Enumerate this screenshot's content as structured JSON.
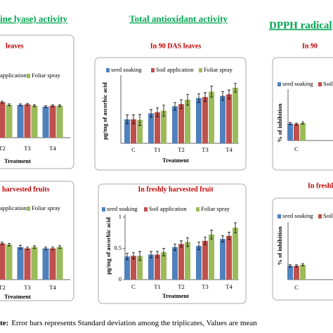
{
  "headings": [
    "ine lyase) activity",
    "Total antioxidant activity",
    "DPPH radical"
  ],
  "note": {
    "label": "te:",
    "text": "Error bars represents Standard deviation among the triplicates, Values are mean"
  },
  "chart_data": [
    {
      "type": "bar",
      "title": "leaves",
      "x_label": "Treatment",
      "categories": [
        "T2",
        "T3",
        "T4"
      ],
      "ylim": [
        0,
        1
      ],
      "series": [
        {
          "name": null,
          "color": "#4f81bd",
          "values": [
            0.74,
            0.72,
            0.68
          ],
          "errors": [
            0.02,
            0.02,
            0.02
          ]
        },
        {
          "name": "application",
          "color": "#c0504d",
          "values": [
            0.78,
            0.73,
            0.7
          ],
          "errors": [
            0.02,
            0.02,
            0.02
          ]
        },
        {
          "name": "Foliar spray",
          "color": "#9bbb59",
          "values": [
            0.72,
            0.7,
            0.7
          ],
          "errors": [
            0.02,
            0.02,
            0.02
          ]
        }
      ]
    },
    {
      "type": "bar",
      "title": "In 90 DAS leaves",
      "x_label": "Treatment",
      "y_label": "μg/mg of ascorbic acid",
      "categories": [
        "C",
        "T1",
        "T2",
        "T3",
        "T4"
      ],
      "ylim": [
        0,
        1.2
      ],
      "series": [
        {
          "name": "seed soaking",
          "color": "#4f81bd",
          "values": [
            0.44,
            0.55,
            0.68,
            0.83,
            0.87
          ],
          "errors": [
            0.08,
            0.07,
            0.07,
            0.08,
            0.08
          ]
        },
        {
          "name": "Soil application",
          "color": "#c0504d",
          "values": [
            0.44,
            0.57,
            0.72,
            0.85,
            0.9
          ],
          "errors": [
            0.08,
            0.08,
            0.08,
            0.08,
            0.08
          ]
        },
        {
          "name": "Foliar spray",
          "color": "#9bbb59",
          "values": [
            0.43,
            0.6,
            0.8,
            0.95,
            1.02
          ],
          "errors": [
            0.1,
            0.1,
            0.1,
            0.1,
            0.08
          ]
        }
      ]
    },
    {
      "type": "bar",
      "title": "In 90",
      "y_label": "% of inhibition",
      "categories": [
        "C"
      ],
      "ylim": [
        0,
        100
      ],
      "series": [
        {
          "name": "seed soaking",
          "color": "#4f81bd",
          "values": [
            35
          ],
          "errors": [
            2
          ]
        },
        {
          "name": "Soil",
          "color": "#c0504d",
          "values": [
            34
          ],
          "errors": [
            2
          ]
        },
        {
          "name": null,
          "color": "#9bbb59",
          "values": [
            36
          ],
          "errors": [
            2
          ]
        }
      ]
    },
    {
      "type": "bar",
      "title": "harvested fruits",
      "x_label": "Treatment",
      "categories": [
        "T2",
        "T3",
        "T4"
      ],
      "ylim": [
        0,
        1
      ],
      "series": [
        {
          "name": null,
          "color": "#4f81bd",
          "values": [
            0.58,
            0.52,
            0.5
          ],
          "errors": [
            0.02,
            0.03,
            0.02
          ]
        },
        {
          "name": "application",
          "color": "#c0504d",
          "values": [
            0.58,
            0.5,
            0.5
          ],
          "errors": [
            0.02,
            0.02,
            0.02
          ]
        },
        {
          "name": "Foliar spray",
          "color": "#9bbb59",
          "values": [
            0.56,
            0.52,
            0.52
          ],
          "errors": [
            0.02,
            0.02,
            0.02
          ]
        }
      ]
    },
    {
      "type": "bar",
      "title": "In freshly harvested fruit",
      "x_label": "Treatment",
      "y_label": "μg/mg of ascorbic acid",
      "categories": [
        "C",
        "T1",
        "T2",
        "T3",
        "T4"
      ],
      "ylim": [
        0,
        1
      ],
      "yticks": [
        0,
        0.5,
        1
      ],
      "series": [
        {
          "name": "seed soaking",
          "color": "#4f81bd",
          "values": [
            0.37,
            0.4,
            0.52,
            0.54,
            0.65
          ],
          "errors": [
            0.05,
            0.05,
            0.05,
            0.06,
            0.05
          ]
        },
        {
          "name": "Soil application",
          "color": "#c0504d",
          "values": [
            0.38,
            0.4,
            0.57,
            0.62,
            0.7
          ],
          "errors": [
            0.05,
            0.05,
            0.05,
            0.06,
            0.06
          ]
        },
        {
          "name": "Foliar spray",
          "color": "#9bbb59",
          "values": [
            0.38,
            0.44,
            0.6,
            0.72,
            0.83
          ],
          "errors": [
            0.07,
            0.06,
            0.07,
            0.07,
            0.08
          ]
        }
      ]
    },
    {
      "type": "bar",
      "title": "In freshly",
      "y_label": "% of inhibition",
      "categories": [
        "C"
      ],
      "ylim": [
        0,
        100
      ],
      "series": [
        {
          "name": "seed soaking",
          "color": "#4f81bd",
          "values": [
            25
          ],
          "errors": [
            2
          ]
        },
        {
          "name": "Soil",
          "color": "#c0504d",
          "values": [
            25
          ],
          "errors": [
            2
          ]
        },
        {
          "name": null,
          "color": "#9bbb59",
          "values": [
            27
          ],
          "errors": [
            2
          ]
        }
      ]
    }
  ]
}
